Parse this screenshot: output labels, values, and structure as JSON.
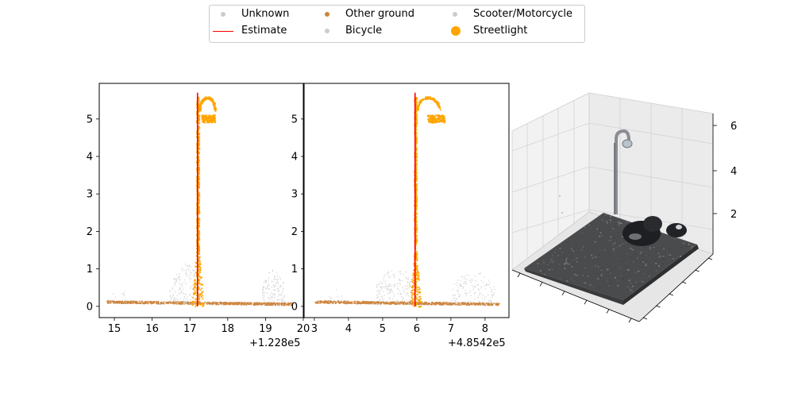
{
  "legend": {
    "items": [
      {
        "label": "Unknown",
        "kind": "dot",
        "color": "#cccccc"
      },
      {
        "label": "Other ground",
        "kind": "dot",
        "color": "#cd853f"
      },
      {
        "label": "Scooter/Motorcycle",
        "kind": "dot",
        "color": "#cccccc"
      },
      {
        "label": "Estimate",
        "kind": "line",
        "color": "#ff0000"
      },
      {
        "label": "Bicycle",
        "kind": "dot",
        "color": "#cccccc"
      },
      {
        "label": "Streetlight",
        "kind": "bigdot",
        "color": "#ffa500"
      }
    ]
  },
  "chart_data": [
    {
      "type": "scatter",
      "title": "",
      "xlabel": "",
      "ylabel": "",
      "x_offset_label": "+1.228e5",
      "xlim": [
        14.6,
        20.0
      ],
      "ylim": [
        -0.3,
        5.95
      ],
      "xticks": [
        "15",
        "16",
        "17",
        "18",
        "19",
        "20"
      ],
      "yticks": [
        "0",
        "1",
        "2",
        "3",
        "4",
        "5"
      ],
      "estimate_line": {
        "x": [
          17.2,
          17.2
        ],
        "y": [
          0.0,
          5.7
        ]
      },
      "series": [
        {
          "name": "Other ground",
          "points": "ground strip y≈0.05–0.15 from x=14.8 to 19.7"
        },
        {
          "name": "Streetlight",
          "points": "pole at x≈17.2 from y=0 to 5.6, lamp arm to x≈17.6, y≈5.0"
        },
        {
          "name": "Unknown",
          "points": "gray clusters near x≈16.5–17.5 and x≈18.9–19.5, y≈0–1.1"
        }
      ]
    },
    {
      "type": "scatter",
      "title": "",
      "xlabel": "",
      "ylabel": "",
      "x_offset_label": "+4.8542e5",
      "xlim": [
        2.7,
        8.7
      ],
      "ylim": [
        -0.3,
        5.95
      ],
      "xticks": [
        "3",
        "4",
        "5",
        "6",
        "7",
        "8"
      ],
      "yticks": [
        "0",
        "1",
        "2",
        "3",
        "4",
        "5"
      ],
      "estimate_line": {
        "x": [
          5.95,
          5.95
        ],
        "y": [
          0.0,
          5.7
        ]
      },
      "series": [
        {
          "name": "Other ground",
          "points": "ground strip y≈0.05–0.15 from x=3.0 to 8.4"
        },
        {
          "name": "Streetlight",
          "points": "pole at x≈5.95 from y=0 to 5.6, lamp arm to x≈6.6, y≈5.0"
        },
        {
          "name": "Unknown",
          "points": "gray clusters near x≈4.8–6.0 and x≈7.0–8.3, y≈0–1.0"
        }
      ]
    },
    {
      "type": "scatter",
      "title": "",
      "xlabel": "",
      "ylabel": "",
      "zticks": [
        "2",
        "4",
        "6"
      ],
      "series": [
        {
          "name": "Colored 3D point cloud",
          "points": "ground patch with streetlight and parked vehicles"
        }
      ]
    }
  ]
}
